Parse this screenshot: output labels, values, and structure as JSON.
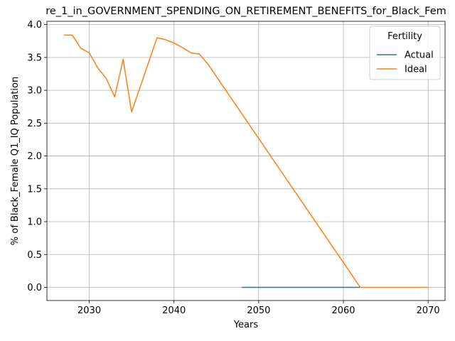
{
  "chart_data": {
    "type": "line",
    "title": "re_1_in_GOVERNMENT_SPENDING_ON_RETIREMENT_BENEFITS_for_Black_Fem",
    "xlabel": "Years",
    "ylabel": "% of Black_Female Q1_IQ Population",
    "xlim": [
      2025,
      2072
    ],
    "ylim": [
      -0.2,
      4.05
    ],
    "xticks": [
      2030,
      2040,
      2050,
      2060,
      2070
    ],
    "xtick_labels": [
      "2030",
      "2040",
      "2050",
      "2060",
      "2070"
    ],
    "yticks": [
      0.0,
      0.5,
      1.0,
      1.5,
      2.0,
      2.5,
      3.0,
      3.5,
      4.0
    ],
    "ytick_labels": [
      "0.0",
      "0.5",
      "1.0",
      "1.5",
      "2.0",
      "2.5",
      "3.0",
      "3.5",
      "4.0"
    ],
    "grid": true,
    "legend": {
      "title": "Fertility",
      "placement": "top-right"
    },
    "series": [
      {
        "name": "Actual",
        "color": "#1f77b4",
        "x": [
          2048,
          2062
        ],
        "y": [
          0.0,
          0.0
        ]
      },
      {
        "name": "Ideal",
        "color": "#ff7f0e",
        "x": [
          2027,
          2028,
          2029,
          2030,
          2031,
          2032,
          2033,
          2034,
          2035,
          2038,
          2039,
          2040,
          2041,
          2042,
          2043,
          2044,
          2062,
          2070
        ],
        "y": [
          3.84,
          3.84,
          3.64,
          3.57,
          3.34,
          3.18,
          2.9,
          3.47,
          2.67,
          3.8,
          3.77,
          3.72,
          3.65,
          3.57,
          3.55,
          3.4,
          0.0,
          0.0
        ]
      }
    ]
  }
}
